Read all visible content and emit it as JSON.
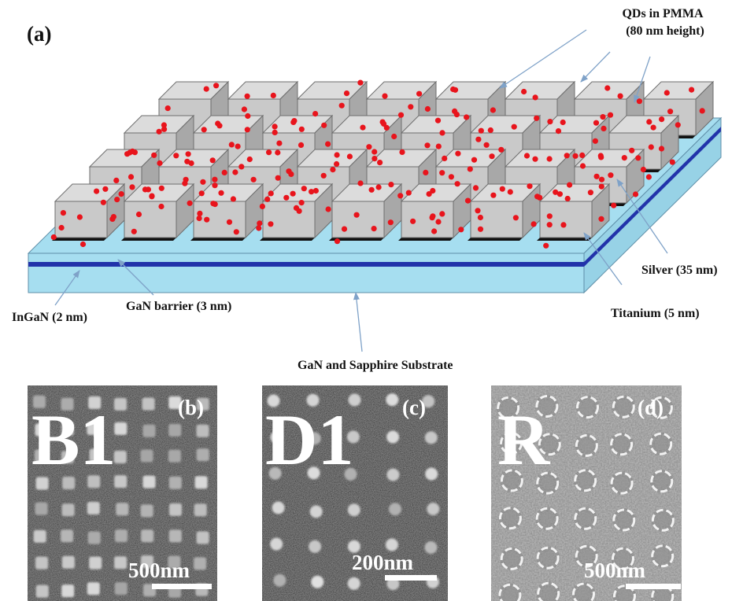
{
  "panel_a": {
    "tag": "(a)",
    "labels": {
      "qds_line1": "QDs in PMMA",
      "qds_line2": "(80 nm height)",
      "silver": "Silver (35 nm)",
      "titanium": "Titanium (5 nm)",
      "ingan": "InGaN (2 nm)",
      "gan_barrier": "GaN barrier (3 nm)",
      "substrate": "GaN and Sapphire Substrate"
    },
    "colors": {
      "substrate_light": "#a6def0",
      "quantum_well": "#2233aa",
      "cube_front": "#c9c9c9",
      "cube_top": "#dcdcdc",
      "cube_side": "#a8a8a8",
      "qd_dot": "#e8141c",
      "arrow": "#7fa2c8"
    }
  },
  "panel_b": {
    "tag": "(b)",
    "id": "B1",
    "scale": "500nm"
  },
  "panel_c": {
    "tag": "(c)",
    "id": "D1",
    "scale": "200nm"
  },
  "panel_d": {
    "tag": "(d)",
    "id": "R",
    "scale": "500nm"
  }
}
